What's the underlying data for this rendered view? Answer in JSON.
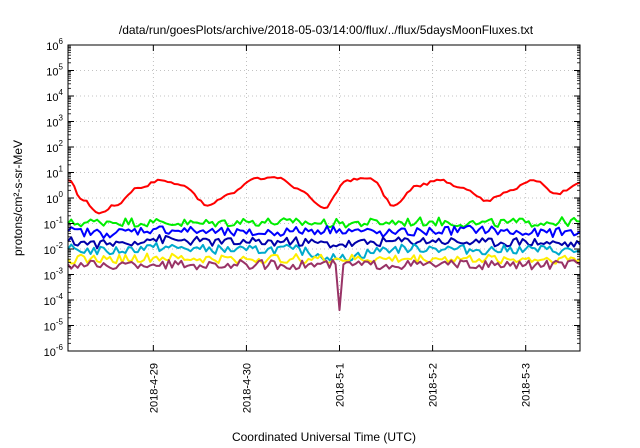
{
  "chart_data": {
    "type": "line",
    "title": "/data/run/goesPlots/archive/2018-05-03/14:00/flux/../flux/5daysMoonFluxes.txt",
    "xlabel": "Coordinated Universal Time (UTC)",
    "ylabel": "protons/cm²-s-sr-MeV",
    "y_scale": "log",
    "ylim": [
      1e-06,
      1000000.0
    ],
    "y_ticks": [
      {
        "value": 1e-06,
        "base": "10",
        "exp": "-6"
      },
      {
        "value": 1e-05,
        "base": "10",
        "exp": "-5"
      },
      {
        "value": 0.0001,
        "base": "10",
        "exp": "-4"
      },
      {
        "value": 0.001,
        "base": "10",
        "exp": "-3"
      },
      {
        "value": 0.01,
        "base": "10",
        "exp": "-2"
      },
      {
        "value": 0.1,
        "base": "10",
        "exp": "-1"
      },
      {
        "value": 1,
        "base": "10",
        "exp": "0"
      },
      {
        "value": 10,
        "base": "10",
        "exp": "1"
      },
      {
        "value": 100,
        "base": "10",
        "exp": "2"
      },
      {
        "value": 1000,
        "base": "10",
        "exp": "3"
      },
      {
        "value": 10000,
        "base": "10",
        "exp": "4"
      },
      {
        "value": 100000,
        "base": "10",
        "exp": "5"
      },
      {
        "value": 1000000,
        "base": "10",
        "exp": "6"
      }
    ],
    "xlim": [
      "2018-04-28 02:00",
      "2018-05-03 14:00"
    ],
    "x_ticks": [
      "2018-4-29",
      "2018-4-30",
      "2018-5-1",
      "2018-5-2",
      "2018-5-3"
    ],
    "grid": true,
    "series": [
      {
        "color": "#ff0000",
        "x": [
          "2018-04-28 02:00",
          "2018-04-28 06:00",
          "2018-04-28 10:00",
          "2018-04-28 14:00",
          "2018-04-28 20:00",
          "2018-04-29 02:00",
          "2018-04-29 08:00",
          "2018-04-29 14:00",
          "2018-04-29 20:00",
          "2018-04-30 02:00",
          "2018-04-30 08:00",
          "2018-04-30 14:00",
          "2018-04-30 20:00",
          "2018-05-01 02:00",
          "2018-05-01 08:00",
          "2018-05-01 14:00",
          "2018-05-01 20:00",
          "2018-05-02 02:00",
          "2018-05-02 08:00",
          "2018-05-02 14:00",
          "2018-05-02 20:00",
          "2018-05-03 02:00",
          "2018-05-03 08:00",
          "2018-05-03 14:00"
        ],
        "values": [
          5,
          0.8,
          0.25,
          0.5,
          2.5,
          5,
          3,
          0.5,
          1.5,
          6,
          6,
          2,
          0.4,
          5,
          6,
          0.5,
          3,
          5,
          2.5,
          0.8,
          2,
          5,
          1.5,
          4
        ]
      },
      {
        "color": "#00ee00",
        "x": [
          "2018-04-28 02:00",
          "2018-04-28 12:00",
          "2018-04-29 00:00",
          "2018-04-29 12:00",
          "2018-04-30 00:00",
          "2018-04-30 12:00",
          "2018-05-01 00:00",
          "2018-05-01 12:00",
          "2018-05-02 00:00",
          "2018-05-02 12:00",
          "2018-05-03 00:00",
          "2018-05-03 14:00"
        ],
        "values": [
          0.1,
          0.12,
          0.11,
          0.1,
          0.12,
          0.11,
          0.1,
          0.11,
          0.12,
          0.1,
          0.11,
          0.12
        ]
      },
      {
        "color": "#0000ff",
        "x": [
          "2018-04-28 02:00",
          "2018-04-28 12:00",
          "2018-04-29 00:00",
          "2018-04-29 12:00",
          "2018-04-30 00:00",
          "2018-04-30 12:00",
          "2018-05-01 00:00",
          "2018-05-01 12:00",
          "2018-05-02 00:00",
          "2018-05-02 12:00",
          "2018-05-03 00:00",
          "2018-05-03 14:00"
        ],
        "values": [
          0.05,
          0.04,
          0.06,
          0.05,
          0.04,
          0.05,
          0.06,
          0.04,
          0.05,
          0.06,
          0.04,
          0.05
        ]
      },
      {
        "color": "#0000aa",
        "x": [
          "2018-04-28 02:00",
          "2018-04-28 12:00",
          "2018-04-29 00:00",
          "2018-04-29 12:00",
          "2018-04-30 00:00",
          "2018-04-30 12:00",
          "2018-05-01 00:00",
          "2018-05-01 12:00",
          "2018-05-02 00:00",
          "2018-05-02 12:00",
          "2018-05-03 00:00",
          "2018-05-03 14:00"
        ],
        "values": [
          0.02,
          0.015,
          0.025,
          0.02,
          0.018,
          0.02,
          0.015,
          0.02,
          0.022,
          0.018,
          0.02,
          0.015
        ]
      },
      {
        "color": "#00aacc",
        "x": [
          "2018-04-28 02:00",
          "2018-04-28 12:00",
          "2018-04-29 00:00",
          "2018-04-29 12:00",
          "2018-04-30 00:00",
          "2018-04-30 12:00",
          "2018-05-01 00:00",
          "2018-05-01 12:00",
          "2018-05-02 00:00",
          "2018-05-02 12:00",
          "2018-05-03 00:00",
          "2018-05-03 14:00"
        ],
        "values": [
          0.01,
          0.008,
          0.012,
          0.01,
          0.009,
          0.01,
          0.004,
          0.01,
          0.011,
          0.009,
          0.01,
          0.008
        ]
      },
      {
        "color": "#ffee00",
        "x": [
          "2018-04-28 02:00",
          "2018-04-28 12:00",
          "2018-04-29 00:00",
          "2018-04-29 12:00",
          "2018-04-30 00:00",
          "2018-04-30 12:00",
          "2018-05-01 00:00",
          "2018-05-01 12:00",
          "2018-05-02 00:00",
          "2018-05-02 12:00",
          "2018-05-03 00:00",
          "2018-05-03 14:00"
        ],
        "values": [
          0.004,
          0.004,
          0.0045,
          0.004,
          0.004,
          0.0042,
          0.004,
          0.004,
          0.0042,
          0.004,
          0.004,
          0.0041
        ]
      },
      {
        "color": "#993366",
        "x": [
          "2018-04-28 02:00",
          "2018-04-28 12:00",
          "2018-04-29 00:00",
          "2018-04-29 12:00",
          "2018-04-30 00:00",
          "2018-04-30 12:00",
          "2018-04-30 23:00",
          "2018-05-01 00:00",
          "2018-05-01 01:00",
          "2018-05-01 12:00",
          "2018-05-02 00:00",
          "2018-05-02 12:00",
          "2018-05-03 00:00",
          "2018-05-03 14:00"
        ],
        "values": [
          0.0025,
          0.0022,
          0.0025,
          0.0023,
          0.0025,
          0.0024,
          0.0025,
          4e-05,
          0.0025,
          0.0024,
          0.0025,
          0.0023,
          0.0024,
          0.0025
        ]
      }
    ]
  }
}
